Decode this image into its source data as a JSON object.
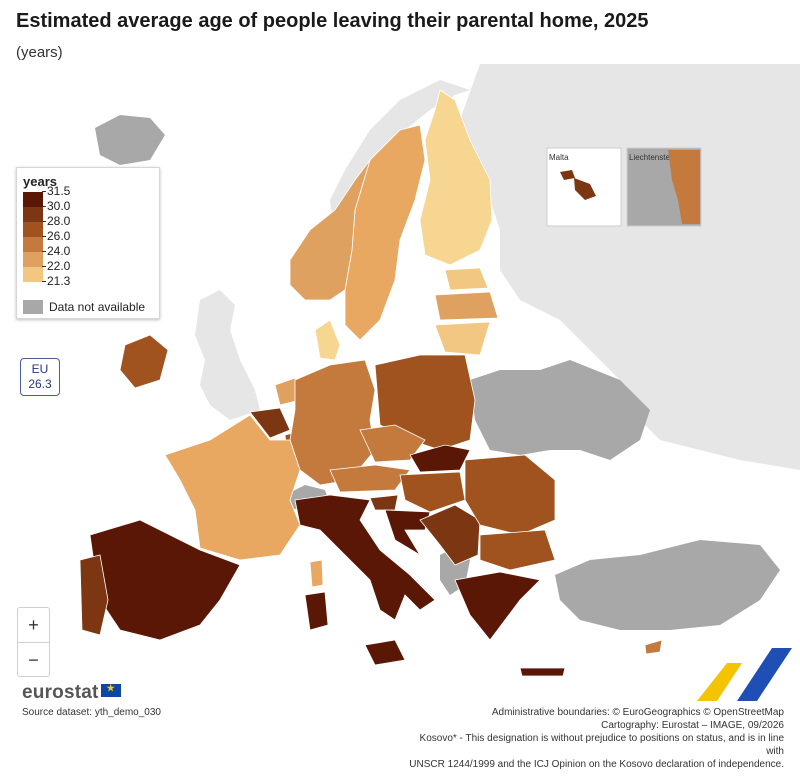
{
  "header": {
    "title": "Estimated average age of people leaving their parental home, 2025",
    "subtitle": "(years)"
  },
  "legend": {
    "title": "years",
    "breaks": [
      "31.5",
      "30.0",
      "28.0",
      "26.0",
      "24.0",
      "22.0",
      "21.3"
    ],
    "colors": [
      "#5a1706",
      "#7c3612",
      "#a0521f",
      "#c47a3d",
      "#dea15f",
      "#f2c781"
    ],
    "not_available": "Data not available",
    "na_color": "#a8a8a8"
  },
  "eu_badge": {
    "label": "EU",
    "value": "26.3"
  },
  "insets": {
    "malta": "Malta",
    "liechtenstein": "Liechtenstein"
  },
  "map_colors": {
    "sea": "#ffffff",
    "non_eu": "#e6e6e6",
    "na": "#a8a8a8"
  },
  "zoom": {
    "in": "+",
    "out": "−"
  },
  "footer": {
    "logo": "eurostat",
    "source": "Source dataset: yth_demo_030",
    "credits": [
      "Administrative boundaries: © EuroGeographics © OpenStreetMap",
      "Cartography: Eurostat – IMAGE, 09/2026",
      "Kosovo* - This designation is without prejudice to positions on status, and is in line with",
      "UNSCR 1244/1999 and the ICJ Opinion on the Kosovo declaration of independence."
    ]
  }
}
